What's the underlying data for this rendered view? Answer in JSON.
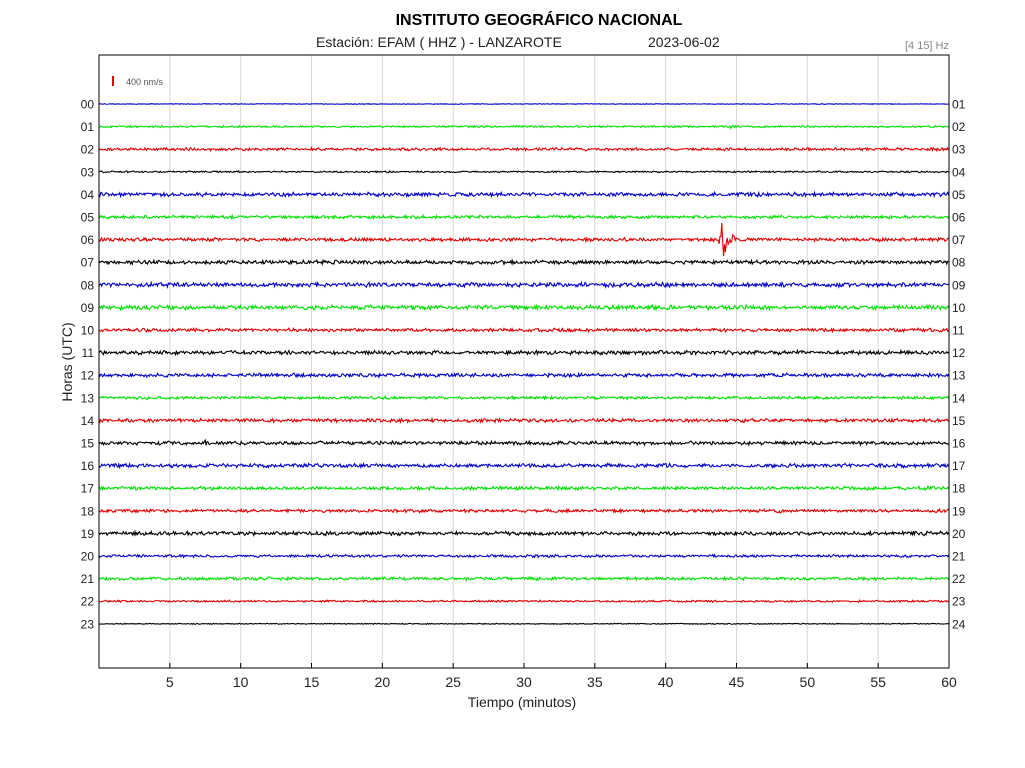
{
  "header": {
    "title": "INSTITUTO GEOGRÁFICO NACIONAL",
    "station": "Estación:  EFAM ( HHZ ) - LANZAROTE",
    "date": "2023-06-02",
    "filter": "[4 15] Hz"
  },
  "chart_data": {
    "type": "line",
    "title": "INSTITUTO GEOGRÁFICO NACIONAL",
    "xlabel": "Tiempo (minutos)",
    "ylabel": "Horas (UTC)",
    "xlim": [
      0,
      60
    ],
    "x_ticks": [
      5,
      10,
      15,
      20,
      25,
      30,
      35,
      40,
      45,
      50,
      55,
      60
    ],
    "grid": true,
    "scale_label": "400 nm/s",
    "scale_color": "#e00000",
    "colors": [
      "#0000c8",
      "#00e000",
      "#e00000",
      "#000000"
    ],
    "hours_left": [
      "00",
      "01",
      "02",
      "03",
      "04",
      "05",
      "06",
      "07",
      "08",
      "09",
      "10",
      "11",
      "12",
      "13",
      "14",
      "15",
      "16",
      "17",
      "18",
      "19",
      "20",
      "21",
      "22",
      "23"
    ],
    "hours_right": [
      "01",
      "02",
      "03",
      "04",
      "05",
      "06",
      "07",
      "08",
      "09",
      "10",
      "11",
      "12",
      "13",
      "14",
      "15",
      "16",
      "17",
      "18",
      "19",
      "20",
      "21",
      "22",
      "23",
      "24"
    ],
    "noise_amplitude": [
      0.3,
      0.8,
      1.2,
      0.7,
      1.6,
      1.3,
      1.5,
      1.6,
      1.8,
      1.8,
      1.4,
      1.6,
      1.5,
      1.2,
      1.5,
      1.5,
      1.6,
      1.4,
      1.3,
      1.6,
      1.1,
      1.3,
      0.8,
      0.4
    ],
    "events": [
      {
        "hour": "01",
        "minute": 44.5,
        "amplitude": 2.5
      },
      {
        "hour": "06",
        "minute": 44.0,
        "amplitude": 26
      },
      {
        "hour": "15",
        "minute": 7.5,
        "amplitude": 3
      },
      {
        "hour": "15",
        "minute": 13.0,
        "amplitude": 3
      },
      {
        "hour": "18",
        "minute": 48.0,
        "amplitude": 3
      },
      {
        "hour": "19",
        "minute": 57.5,
        "amplitude": 3
      },
      {
        "hour": "12",
        "minute": 40.7,
        "amplitude": 3
      },
      {
        "hour": "11",
        "minute": 37.5,
        "amplitude": 2.5
      }
    ]
  }
}
